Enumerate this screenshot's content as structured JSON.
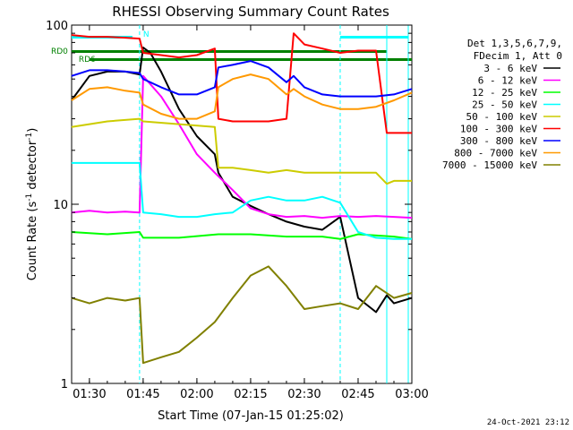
{
  "chart_data": {
    "type": "line",
    "title": "RHESSI Observing Summary Count Rates",
    "xlabel": "Start Time (07-Jan-15 01:25:02)",
    "ylabel_main": "Count Rate (s",
    "ylabel_sup": "-1",
    "ylabel_rest": " detector",
    "ylabel_end": ")",
    "y_scale": "log",
    "xlim": [
      "01:25:02",
      "03:00:00"
    ],
    "ylim": [
      1,
      100
    ],
    "x_ticks": [
      "01:30",
      "01:45",
      "02:00",
      "02:15",
      "02:30",
      "02:45",
      "03:00"
    ],
    "y_ticks": [
      "1",
      "10",
      "100"
    ],
    "legend_header": [
      "Det 1,3,5,6,7,9,",
      "FDecim 1, Att 0"
    ],
    "legend_position": "right",
    "timestamp": "24-Oct-2021 23:12",
    "flags": [
      {
        "label": "N",
        "color": "#00ffff"
      },
      {
        "label": "RD0",
        "color": "#008000"
      },
      {
        "label": "RD6",
        "color": "#008000"
      }
    ],
    "night_markers": [
      "01:44",
      "02:53",
      "02:40",
      "02:59"
    ],
    "series": [
      {
        "name": "3 - 6 keV",
        "color": "#000000",
        "x": [
          "01:25",
          "01:30",
          "01:35",
          "01:40",
          "01:44",
          "01:45",
          "01:47",
          "01:50",
          "01:55",
          "02:00",
          "02:05",
          "02:06",
          "02:10",
          "02:15",
          "02:20",
          "02:25",
          "02:30",
          "02:35",
          "02:40",
          "02:45",
          "02:50",
          "02:53",
          "02:55",
          "03:00"
        ],
        "y": [
          38,
          52,
          55,
          55,
          53,
          75,
          70,
          55,
          34,
          24,
          19,
          15,
          11,
          9.8,
          8.8,
          8.0,
          7.5,
          7.2,
          8.5,
          3.0,
          2.5,
          3.1,
          2.8,
          3.0
        ]
      },
      {
        "name": "6 - 12 keV",
        "color": "#ff00ff",
        "x": [
          "01:25",
          "01:30",
          "01:35",
          "01:40",
          "01:44",
          "01:45",
          "01:50",
          "01:55",
          "02:00",
          "02:05",
          "02:10",
          "02:15",
          "02:20",
          "02:25",
          "02:30",
          "02:35",
          "02:40",
          "02:45",
          "02:50",
          "02:55",
          "03:00"
        ],
        "y": [
          9.0,
          9.2,
          9.0,
          9.1,
          9.0,
          52,
          40,
          28,
          19,
          15,
          12,
          9.5,
          8.8,
          8.5,
          8.6,
          8.4,
          8.6,
          8.5,
          8.6,
          8.5,
          8.4
        ]
      },
      {
        "name": "12 - 25 keV",
        "color": "#00ff00",
        "x": [
          "01:25",
          "01:35",
          "01:44",
          "01:45",
          "01:55",
          "02:06",
          "02:15",
          "02:25",
          "02:35",
          "02:40",
          "02:45",
          "02:55",
          "03:00"
        ],
        "y": [
          7.0,
          6.8,
          7.0,
          6.5,
          6.5,
          6.8,
          6.8,
          6.6,
          6.6,
          6.4,
          6.8,
          6.6,
          6.4
        ]
      },
      {
        "name": "25 - 50 keV",
        "color": "#00ffff",
        "x": [
          "01:25",
          "01:30",
          "01:35",
          "01:40",
          "01:44",
          "01:45",
          "01:50",
          "01:55",
          "02:00",
          "02:05",
          "02:10",
          "02:15",
          "02:20",
          "02:25",
          "02:30",
          "02:35",
          "02:40",
          "02:45",
          "02:50",
          "02:55",
          "03:00"
        ],
        "y": [
          17,
          17,
          17,
          17,
          17,
          9.0,
          8.8,
          8.5,
          8.5,
          8.8,
          9.0,
          10.5,
          11,
          10.5,
          10.5,
          11,
          10.2,
          7.0,
          6.5,
          6.4,
          6.4
        ]
      },
      {
        "name": "50 - 100 keV",
        "color": "#cccc00",
        "x": [
          "01:25",
          "01:35",
          "01:44",
          "01:45",
          "01:55",
          "02:05",
          "02:06",
          "02:10",
          "02:15",
          "02:20",
          "02:25",
          "02:30",
          "02:40",
          "02:45",
          "02:50",
          "02:53",
          "02:55",
          "03:00"
        ],
        "y": [
          27,
          29,
          30,
          29,
          28,
          27,
          16,
          16,
          15.5,
          15,
          15.5,
          15,
          15,
          15,
          15,
          13,
          13.5,
          13.5
        ]
      },
      {
        "name": "100 - 300 keV",
        "color": "#ff0000",
        "x": [
          "01:25",
          "01:30",
          "01:35",
          "01:40",
          "01:44",
          "01:45",
          "01:50",
          "01:55",
          "02:00",
          "02:05",
          "02:06",
          "02:10",
          "02:15",
          "02:20",
          "02:25",
          "02:27",
          "02:30",
          "02:35",
          "02:40",
          "02:45",
          "02:50",
          "02:53",
          "02:55",
          "03:00"
        ],
        "y": [
          88,
          86,
          86,
          85,
          84,
          70,
          68,
          66,
          68,
          74,
          30,
          29,
          29,
          29,
          30,
          90,
          78,
          74,
          70,
          72,
          72,
          25,
          25,
          25
        ]
      },
      {
        "name": "300 - 800 keV",
        "color": "#0000ff",
        "x": [
          "01:25",
          "01:30",
          "01:35",
          "01:40",
          "01:44",
          "01:45",
          "01:50",
          "01:55",
          "02:00",
          "02:05",
          "02:06",
          "02:10",
          "02:15",
          "02:20",
          "02:25",
          "02:27",
          "02:30",
          "02:35",
          "02:40",
          "02:45",
          "02:50",
          "02:55",
          "03:00"
        ],
        "y": [
          52,
          56,
          56,
          55,
          54,
          50,
          45,
          41,
          41,
          45,
          58,
          60,
          63,
          58,
          48,
          52,
          45,
          41,
          40,
          40,
          40,
          41,
          44
        ]
      },
      {
        "name": "800 - 7000 keV",
        "color": "#ff9900",
        "x": [
          "01:25",
          "01:30",
          "01:35",
          "01:40",
          "01:44",
          "01:45",
          "01:50",
          "01:55",
          "02:00",
          "02:05",
          "02:06",
          "02:10",
          "02:15",
          "02:20",
          "02:25",
          "02:27",
          "02:30",
          "02:35",
          "02:40",
          "02:45",
          "02:50",
          "02:55",
          "03:00"
        ],
        "y": [
          38,
          44,
          45,
          43,
          42,
          36,
          32,
          30,
          30,
          33,
          45,
          50,
          53,
          50,
          41,
          44,
          40,
          36,
          34,
          34,
          35,
          38,
          42
        ]
      },
      {
        "name": "7000 - 15000 keV",
        "color": "#808000",
        "x": [
          "01:25",
          "01:30",
          "01:35",
          "01:40",
          "01:44",
          "01:45",
          "01:50",
          "01:55",
          "02:00",
          "02:05",
          "02:10",
          "02:15",
          "02:20",
          "02:25",
          "02:30",
          "02:35",
          "02:40",
          "02:45",
          "02:50",
          "02:55",
          "03:00"
        ],
        "y": [
          3.0,
          2.8,
          3.0,
          2.9,
          3.0,
          1.3,
          1.4,
          1.5,
          1.8,
          2.2,
          3.0,
          4.0,
          4.5,
          3.5,
          2.6,
          2.7,
          2.8,
          2.6,
          3.5,
          3.0,
          3.2
        ]
      }
    ]
  }
}
